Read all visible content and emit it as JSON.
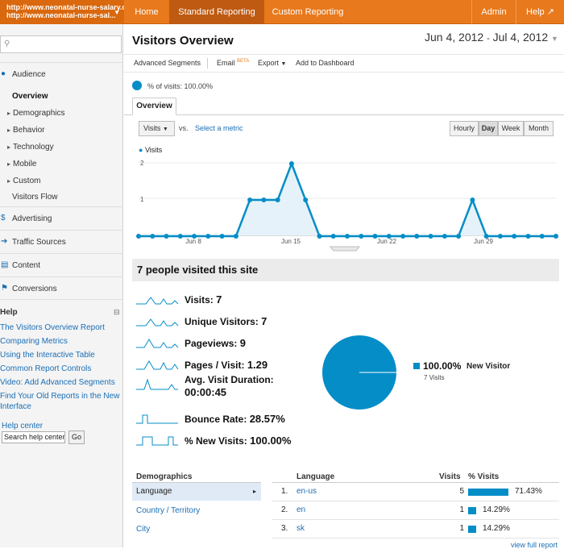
{
  "account": {
    "line1": "http://www.neonatal-nurse-salary.or",
    "line2": "http://www.neonatal-nurse-sal..."
  },
  "topnav": [
    {
      "label": "Home"
    },
    {
      "label": "Standard Reporting"
    },
    {
      "label": "Custom Reporting"
    },
    {
      "label": "Admin"
    },
    {
      "label": "Help"
    }
  ],
  "sidebar": {
    "audience": "Audience",
    "overview": "Overview",
    "audience_items": [
      "Demographics",
      "Behavior",
      "Technology",
      "Mobile",
      "Custom"
    ],
    "visitors_flow": "Visitors Flow",
    "advertising": "Advertising",
    "traffic_sources": "Traffic Sources",
    "content": "Content",
    "conversions": "Conversions",
    "help_title": "Help",
    "help_links": [
      "The Visitors Overview Report",
      "Comparing Metrics",
      "Using the Interactive Table",
      "Common Report Controls",
      "Video: Add Advanced Segments",
      "Find Your Old Reports in the New Interface"
    ],
    "help_center": "Help center",
    "help_search_value": "Search help center",
    "go": "Go"
  },
  "page": {
    "title": "Visitors Overview",
    "date_start": "Jun 4, 2012",
    "date_sep": "-",
    "date_end": "Jul 4, 2012",
    "toolbar": {
      "segments": "Advanced Segments",
      "email": "Email",
      "beta": "BETA",
      "export": "Export",
      "dashboard": "Add to Dashboard"
    },
    "pct_visits": "% of visits: 100.00%",
    "tab": "Overview",
    "metric_select": "Visits",
    "vs": "vs.",
    "select_metric": "Select a metric",
    "granularity": [
      "Hourly",
      "Day",
      "Week",
      "Month"
    ],
    "legend": "Visits",
    "yticks": [
      "2",
      "1"
    ],
    "xticks": [
      "Jun 8",
      "Jun 15",
      "Jun 22",
      "Jun 29"
    ],
    "summary": "7 people visited this site",
    "metrics": [
      {
        "label": "Visits:",
        "value": "7"
      },
      {
        "label": "Unique Visitors:",
        "value": "7"
      },
      {
        "label": "Pageviews:",
        "value": "9"
      },
      {
        "label": "Pages / Visit:",
        "value": "1.29"
      },
      {
        "label": "Avg. Visit Duration:",
        "value": "00:00:45"
      },
      {
        "label": "Bounce Rate:",
        "value": "28.57%"
      },
      {
        "label": "% New Visits:",
        "value": "100.00%"
      }
    ],
    "pie": {
      "pct": "100.00%",
      "label": "New Visitor",
      "sub": "7 Visits"
    },
    "demographics": {
      "title": "Demographics",
      "items": [
        "Language",
        "Country / Territory",
        "City"
      ]
    },
    "language_table": {
      "headers": [
        "Language",
        "Visits",
        "% Visits"
      ],
      "rows": [
        {
          "n": "1.",
          "lang": "en-us",
          "visits": "5",
          "pct": "71.43%",
          "frac": 0.7143
        },
        {
          "n": "2.",
          "lang": "en",
          "visits": "1",
          "pct": "14.29%",
          "frac": 0.1429
        },
        {
          "n": "3.",
          "lang": "sk",
          "visits": "1",
          "pct": "14.29%",
          "frac": 0.1429
        }
      ],
      "full_report": "view full report"
    }
  },
  "chart_data": {
    "type": "line",
    "series": [
      {
        "name": "Visits",
        "values": [
          0,
          0,
          0,
          0,
          0,
          0,
          0,
          0,
          1,
          1,
          1,
          2,
          1,
          0,
          0,
          0,
          0,
          0,
          0,
          0,
          0,
          0,
          0,
          0,
          1,
          0,
          0,
          0,
          0,
          0,
          0
        ]
      }
    ],
    "x": [
      "Jun 4",
      "Jun 5",
      "Jun 6",
      "Jun 7",
      "Jun 8",
      "Jun 9",
      "Jun 10",
      "Jun 11",
      "Jun 12",
      "Jun 13",
      "Jun 14",
      "Jun 15",
      "Jun 16",
      "Jun 17",
      "Jun 18",
      "Jun 19",
      "Jun 20",
      "Jun 21",
      "Jun 22",
      "Jun 23",
      "Jun 24",
      "Jun 25",
      "Jun 26",
      "Jun 27",
      "Jun 28",
      "Jun 29",
      "Jun 30",
      "Jul 1",
      "Jul 2",
      "Jul 3",
      "Jul 4"
    ],
    "ylim": [
      0,
      2
    ],
    "color": "#058dc7"
  },
  "colors": {
    "accent": "#e8791c",
    "blue": "#058dc7",
    "link": "#1a6eb5"
  }
}
